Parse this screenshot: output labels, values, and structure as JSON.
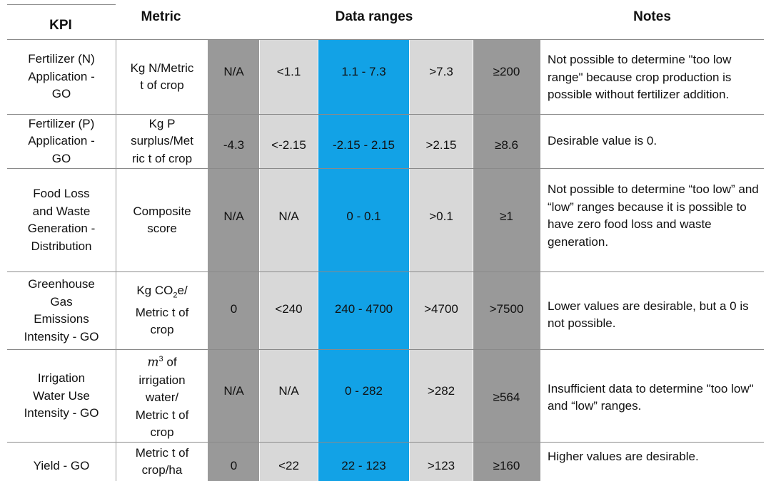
{
  "headers": {
    "kpi": "KPI",
    "metric": "Metric",
    "ranges": "Data ranges",
    "notes": "Notes"
  },
  "rows": [
    {
      "kpi": [
        "Fertilizer (N)",
        "Application -",
        "GO"
      ],
      "metric": [
        "Kg N/Metric",
        "t of crop"
      ],
      "ranges": [
        "N/A",
        "<1.1",
        "1.1 - 7.3",
        ">7.3",
        "≥200"
      ],
      "note": "Not possible to determine \"too low range\" because crop production is possible without fertilizer addition."
    },
    {
      "kpi": [
        "Fertilizer (P)",
        "Application -",
        "GO"
      ],
      "metric": [
        "Kg P",
        "surplus/Met",
        "ric t of crop"
      ],
      "ranges": [
        "-4.3",
        "<-2.15",
        "-2.15 - 2.15",
        ">2.15",
        "≥8.6"
      ],
      "note": "Desirable value is 0."
    },
    {
      "kpi": [
        "Food Loss",
        "and Waste",
        "Generation -",
        "Distribution"
      ],
      "metric": [
        "Composite",
        "score"
      ],
      "ranges": [
        "N/A",
        "N/A",
        "0 - 0.1",
        ">0.1",
        "≥1"
      ],
      "note": "Not possible to determine “too low” and “low” ranges because it is possible to have zero food loss and waste generation."
    },
    {
      "kpi": [
        "Greenhouse",
        "Gas",
        "Emissions",
        "Intensity - GO"
      ],
      "metric_parts": {
        "a": "Kg CO",
        "sub": "2",
        "b": "e/",
        "line2": "Metric t of",
        "line3": "crop"
      },
      "ranges": [
        "0",
        "<240",
        "240 - 4700",
        ">4700",
        ">7500"
      ],
      "note": "Lower values are desirable, but a 0 is not possible."
    },
    {
      "kpi": [
        "Irrigation",
        "Water Use",
        "Intensity - GO"
      ],
      "metric_parts": {
        "a": "m",
        "sup": "3",
        "b": " of",
        "line2": "irrigation",
        "line3": "water/",
        "line4": "Metric t of",
        "line5": "crop"
      },
      "ranges": [
        "N/A",
        "N/A",
        "0 - 282",
        ">282",
        "≥564"
      ],
      "note": "Insufficient data to determine \"too low\" and “low” ranges."
    },
    {
      "kpi": [
        "Yield - GO"
      ],
      "metric": [
        "Metric t of",
        "crop/ha"
      ],
      "ranges": [
        "0",
        "<22",
        "22 - 123",
        ">123",
        "≥160"
      ],
      "note": "Higher values are desirable."
    }
  ],
  "colors": {
    "dark_gray": "#999999",
    "light_gray": "#d8d8d8",
    "blue": "#12a2e6"
  }
}
